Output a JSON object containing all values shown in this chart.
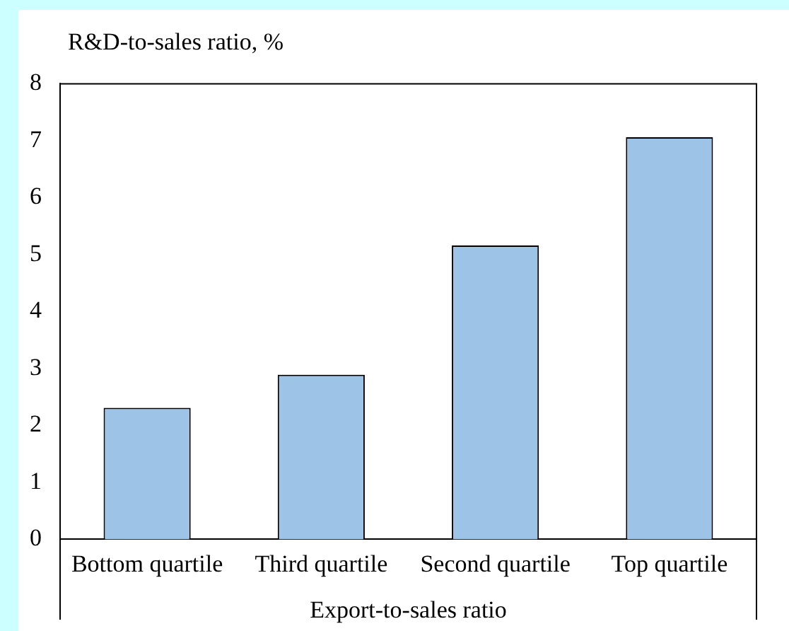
{
  "chart_data": {
    "type": "bar",
    "ylabel": "R&D-to-sales ratio, %",
    "xlabel": "Export-to-sales ratio",
    "categories": [
      "Bottom quartile",
      "Third quartile",
      "Second quartile",
      "Top quartile"
    ],
    "values": [
      2.31,
      2.89,
      5.16,
      7.06
    ],
    "color": "#9dc3e6",
    "ylim": [
      0,
      8
    ],
    "yticks": [
      0,
      1,
      2,
      3,
      4,
      5,
      6,
      7,
      8
    ],
    "grid": false,
    "legend": false
  }
}
